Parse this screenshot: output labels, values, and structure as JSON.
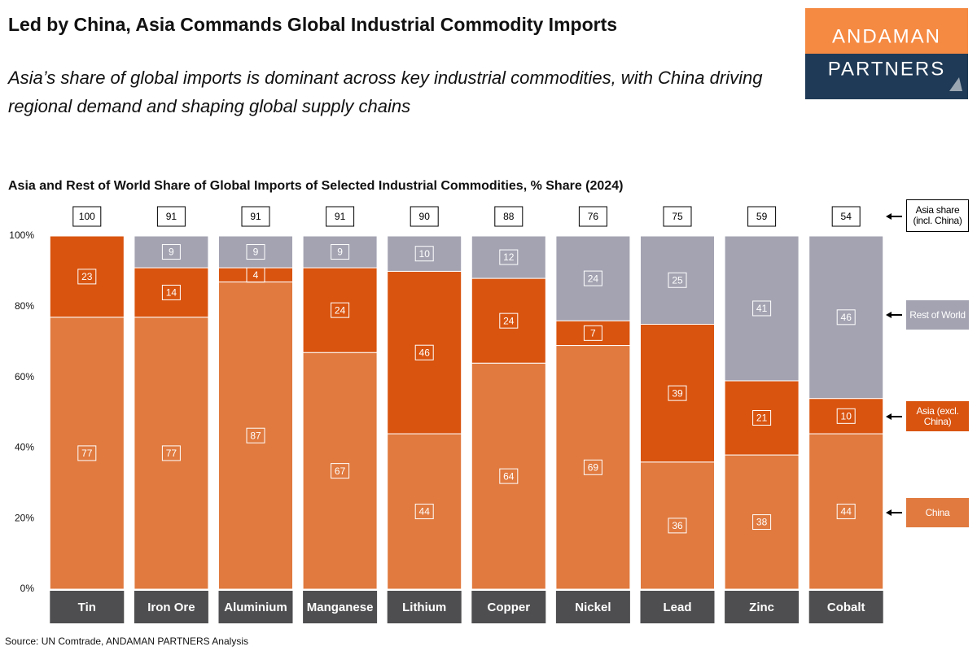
{
  "chart_data": {
    "type": "stacked_bar",
    "title": "Led by China, Asia Commands Global Industrial Commodity Imports",
    "subtitle": "Asia’s share of global imports is dominant across key industrial commodities, with China driving regional demand and shaping global supply chains",
    "chart_title": "Asia and Rest of World Share of Global Imports of Selected Industrial Commodities, % Share (2024)",
    "source": "Source: UN Comtrade, ANDAMAN PARTNERS Analysis",
    "logo": [
      "ANDAMAN",
      "PARTNERS"
    ],
    "categories": [
      "Tin",
      "Iron Ore",
      "Aluminium",
      "Manganese",
      "Lithium",
      "Copper",
      "Nickel",
      "Lead",
      "Zinc",
      "Cobalt"
    ],
    "series": [
      {
        "name": "China",
        "color": "#e07a3f",
        "values": [
          77,
          77,
          87,
          67,
          44,
          64,
          69,
          36,
          38,
          44
        ]
      },
      {
        "name": "Asia (excl. China)",
        "color": "#d9540f",
        "values": [
          23,
          14,
          4,
          24,
          46,
          24,
          7,
          39,
          21,
          10
        ]
      },
      {
        "name": "Rest of World",
        "color": "#a3a3b2",
        "values": [
          null,
          9,
          9,
          9,
          10,
          12,
          24,
          25,
          41,
          46
        ]
      }
    ],
    "asia_share": {
      "name": "Asia share (incl. China)",
      "values": [
        100,
        91,
        91,
        91,
        90,
        88,
        76,
        75,
        59,
        54
      ]
    },
    "ylim": [
      0,
      100
    ],
    "yticks": [
      {
        "value": 0,
        "label": "0%"
      },
      {
        "value": 20,
        "label": "20%"
      },
      {
        "value": 40,
        "label": "40%"
      },
      {
        "value": 60,
        "label": "60%"
      },
      {
        "value": 80,
        "label": "80%"
      },
      {
        "value": 100,
        "label": "100%"
      }
    ],
    "grid": false
  }
}
